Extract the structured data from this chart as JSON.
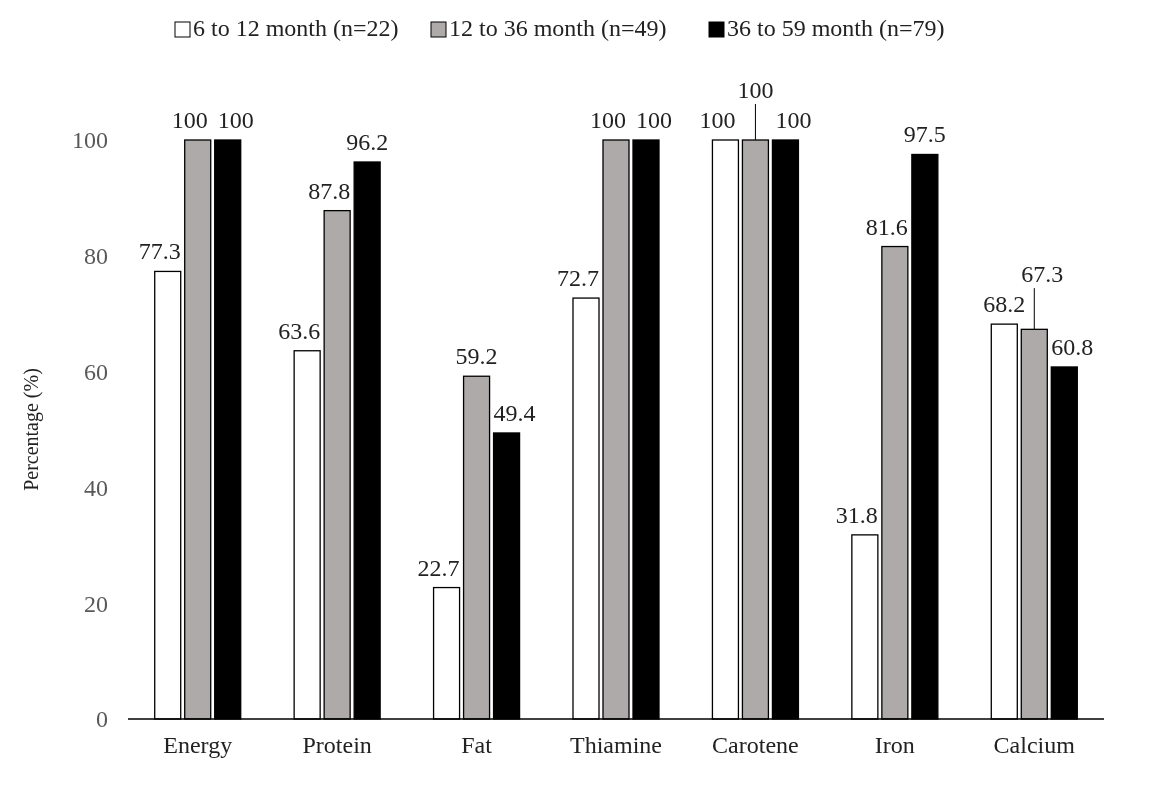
{
  "chart_data": {
    "type": "bar",
    "ylabel": "Percentage (%)",
    "categories": [
      "Energy",
      "Protein",
      "Fat",
      "Thiamine",
      "Carotene",
      "Iron",
      "Calcium"
    ],
    "series": [
      {
        "name": "6 to 12 month (n=22)",
        "color": "#ffffff",
        "values": [
          77.3,
          63.6,
          22.7,
          72.7,
          100,
          31.8,
          68.2
        ]
      },
      {
        "name": "12 to 36 month  (n=49)",
        "color": "#aeaaaa",
        "values": [
          100,
          87.8,
          59.2,
          100,
          100,
          81.6,
          67.3
        ]
      },
      {
        "name": "36 to 59 month  (n=79)",
        "color": "#000000",
        "values": [
          100,
          96.2,
          49.4,
          100,
          100,
          97.5,
          60.8
        ]
      }
    ],
    "ylim": [
      0,
      100
    ],
    "yticks": [
      0,
      20,
      40,
      60,
      80,
      100
    ],
    "grid": false,
    "legend": "top",
    "data_labels": true
  }
}
